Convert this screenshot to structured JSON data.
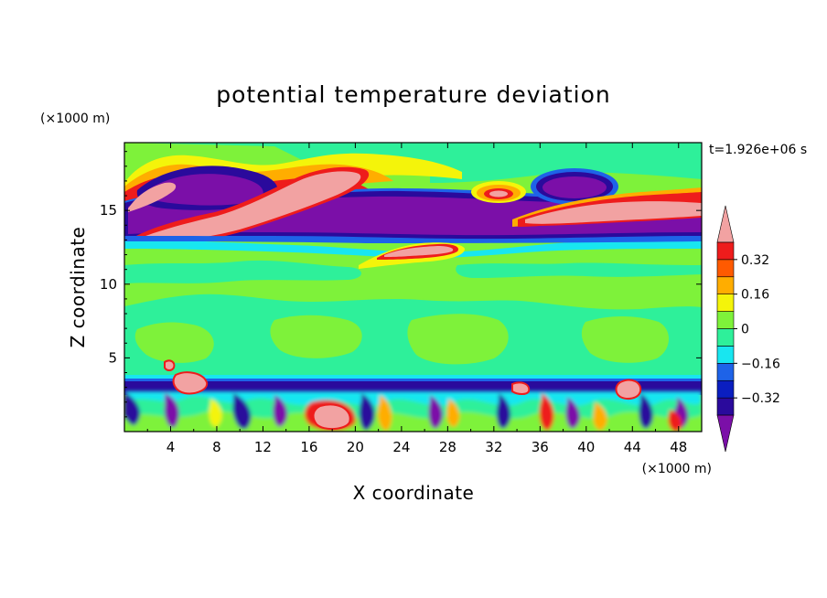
{
  "chart_data": {
    "type": "heatmap",
    "title": "potential temperature deviation",
    "time_label": "t=1.926e+06 s",
    "xlabel": "X coordinate",
    "ylabel": "Z coordinate",
    "x_unit": "(×1000 m)",
    "y_unit": "(×1000 m)",
    "xlim": [
      0,
      50
    ],
    "ylim": [
      0,
      19.6
    ],
    "x_ticks": [
      "4",
      "8",
      "12",
      "16",
      "20",
      "24",
      "28",
      "32",
      "36",
      "40",
      "44",
      "48"
    ],
    "x_tick_values": [
      4,
      8,
      12,
      16,
      20,
      24,
      28,
      32,
      36,
      40,
      44,
      48
    ],
    "y_ticks": [
      "5",
      "10",
      "15"
    ],
    "y_tick_values": [
      5,
      10,
      15
    ],
    "colorbar": {
      "levels": [
        -0.48,
        -0.4,
        -0.32,
        -0.24,
        -0.16,
        -0.08,
        0,
        0.08,
        0.16,
        0.24,
        0.32,
        0.4,
        0.48
      ],
      "colors": [
        "#7b0fa8",
        "#2a0a9c",
        "#0a1ec0",
        "#1e63e8",
        "#18e6f0",
        "#2ef09a",
        "#7ef23a",
        "#f4f40a",
        "#ffad00",
        "#ff5a00",
        "#ee1c1c",
        "#f2a2a2"
      ],
      "tick_labels": [
        "0.32",
        "0.16",
        "0",
        "−0.16",
        "−0.32"
      ],
      "tick_values": [
        0.32,
        0.16,
        0,
        -0.16,
        -0.32
      ]
    },
    "background_level": "0",
    "features": [
      {
        "name": "upper-inversion-band",
        "z_range": [
          13.2,
          16.8
        ],
        "value_class": "-0.48"
      },
      {
        "name": "warm-filament-1",
        "x_range": [
          0,
          28
        ],
        "z_range": [
          13.4,
          18.6
        ],
        "value_class": "0.48"
      },
      {
        "name": "warm-filament-2",
        "x_range": [
          35,
          50
        ],
        "z_range": [
          14,
          15.8
        ],
        "value_class": "0.48"
      },
      {
        "name": "warm-lens",
        "x_range": [
          21,
          29
        ],
        "z_range": [
          11,
          12.5
        ],
        "value_class": "0.48"
      },
      {
        "name": "cold-cell-upper-right",
        "x_range": [
          35,
          43
        ],
        "z_range": [
          16,
          18.2
        ],
        "value_class": "-0.48"
      },
      {
        "name": "boundary-layer-turbulence",
        "z_range": [
          0,
          3.6
        ],
        "value_class": "mixed"
      }
    ]
  }
}
